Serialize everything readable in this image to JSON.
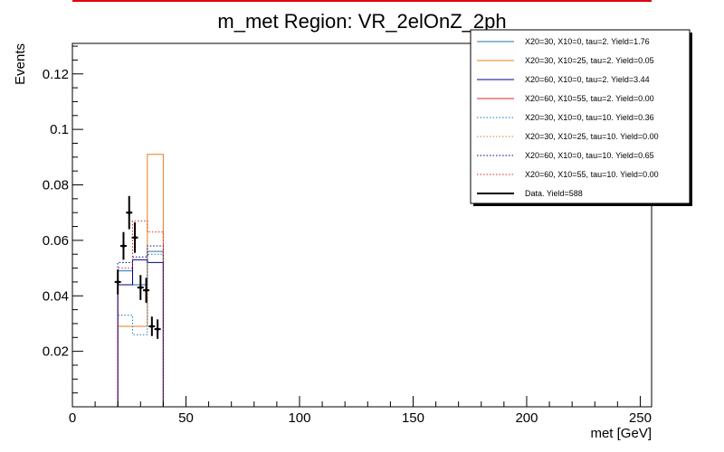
{
  "chart_data": {
    "type": "histogram",
    "title": "m_met Region: VR_2elOnZ_2ph",
    "xlabel": "met [GeV]",
    "ylabel": "Events",
    "xlim": [
      0,
      255
    ],
    "ylim": [
      0,
      0.131
    ],
    "x_ticks": [
      0,
      50,
      100,
      150,
      200,
      250
    ],
    "y_ticks": [
      0.02,
      0.04,
      0.06,
      0.08,
      0.1,
      0.12
    ],
    "y_tick_labels": [
      "0.02",
      "0.04",
      "0.06",
      "0.08",
      "0.1",
      "0.12"
    ],
    "grid": false,
    "legend_position": "top-right",
    "bin_edges": [
      20,
      26.5,
      33,
      40
    ],
    "series": [
      {
        "name": "X20=30, X10=0, tau=2. Yield=1.76",
        "color": "#1f77b4",
        "style": "solid",
        "values": [
          0.049,
          0.044,
          0.056
        ]
      },
      {
        "name": "X20=30, X10=25, tau=2. Yield=0.05",
        "color": "#e67e22",
        "style": "solid",
        "values": [
          0.029,
          0.029,
          0.091
        ]
      },
      {
        "name": "X20=60, X10=0, tau=2. Yield=3.44",
        "color": "#00008b",
        "style": "solid",
        "values": [
          0.044,
          0.053,
          0.052
        ]
      },
      {
        "name": "X20=60, X10=55, tau=2. Yield=0.00",
        "color": "#d62728",
        "style": "solid",
        "values": [
          0,
          0,
          0
        ]
      },
      {
        "name": "X20=30, X10=0, tau=10. Yield=0.36",
        "color": "#1f77b4",
        "style": "dotted",
        "values": [
          0.033,
          0.026,
          0.055
        ]
      },
      {
        "name": "X20=30, X10=25, tau=10. Yield=0.00",
        "color": "#e67e22",
        "style": "dotted",
        "values": [
          0,
          0,
          0
        ]
      },
      {
        "name": "X20=60, X10=0, tau=10. Yield=0.65",
        "color": "#00008b",
        "style": "dotted",
        "values": [
          0.052,
          0.054,
          0.058
        ]
      },
      {
        "name": "X20=60, X10=55, tau=10. Yield=0.00",
        "color": "#d62728",
        "style": "dotted",
        "values": [
          0.05,
          0.067,
          0.063
        ]
      }
    ],
    "data": {
      "name": "Data. Yield=588",
      "color": "#000000",
      "points": [
        {
          "x": 20,
          "y": 0.045,
          "err": 0.0045
        },
        {
          "x": 22.5,
          "y": 0.058,
          "err": 0.005
        },
        {
          "x": 25,
          "y": 0.07,
          "err": 0.006
        },
        {
          "x": 27.5,
          "y": 0.061,
          "err": 0.0055
        },
        {
          "x": 30,
          "y": 0.043,
          "err": 0.0045
        },
        {
          "x": 32.5,
          "y": 0.042,
          "err": 0.0045
        },
        {
          "x": 35,
          "y": 0.029,
          "err": 0.0035
        },
        {
          "x": 37.5,
          "y": 0.028,
          "err": 0.0035
        }
      ]
    }
  }
}
